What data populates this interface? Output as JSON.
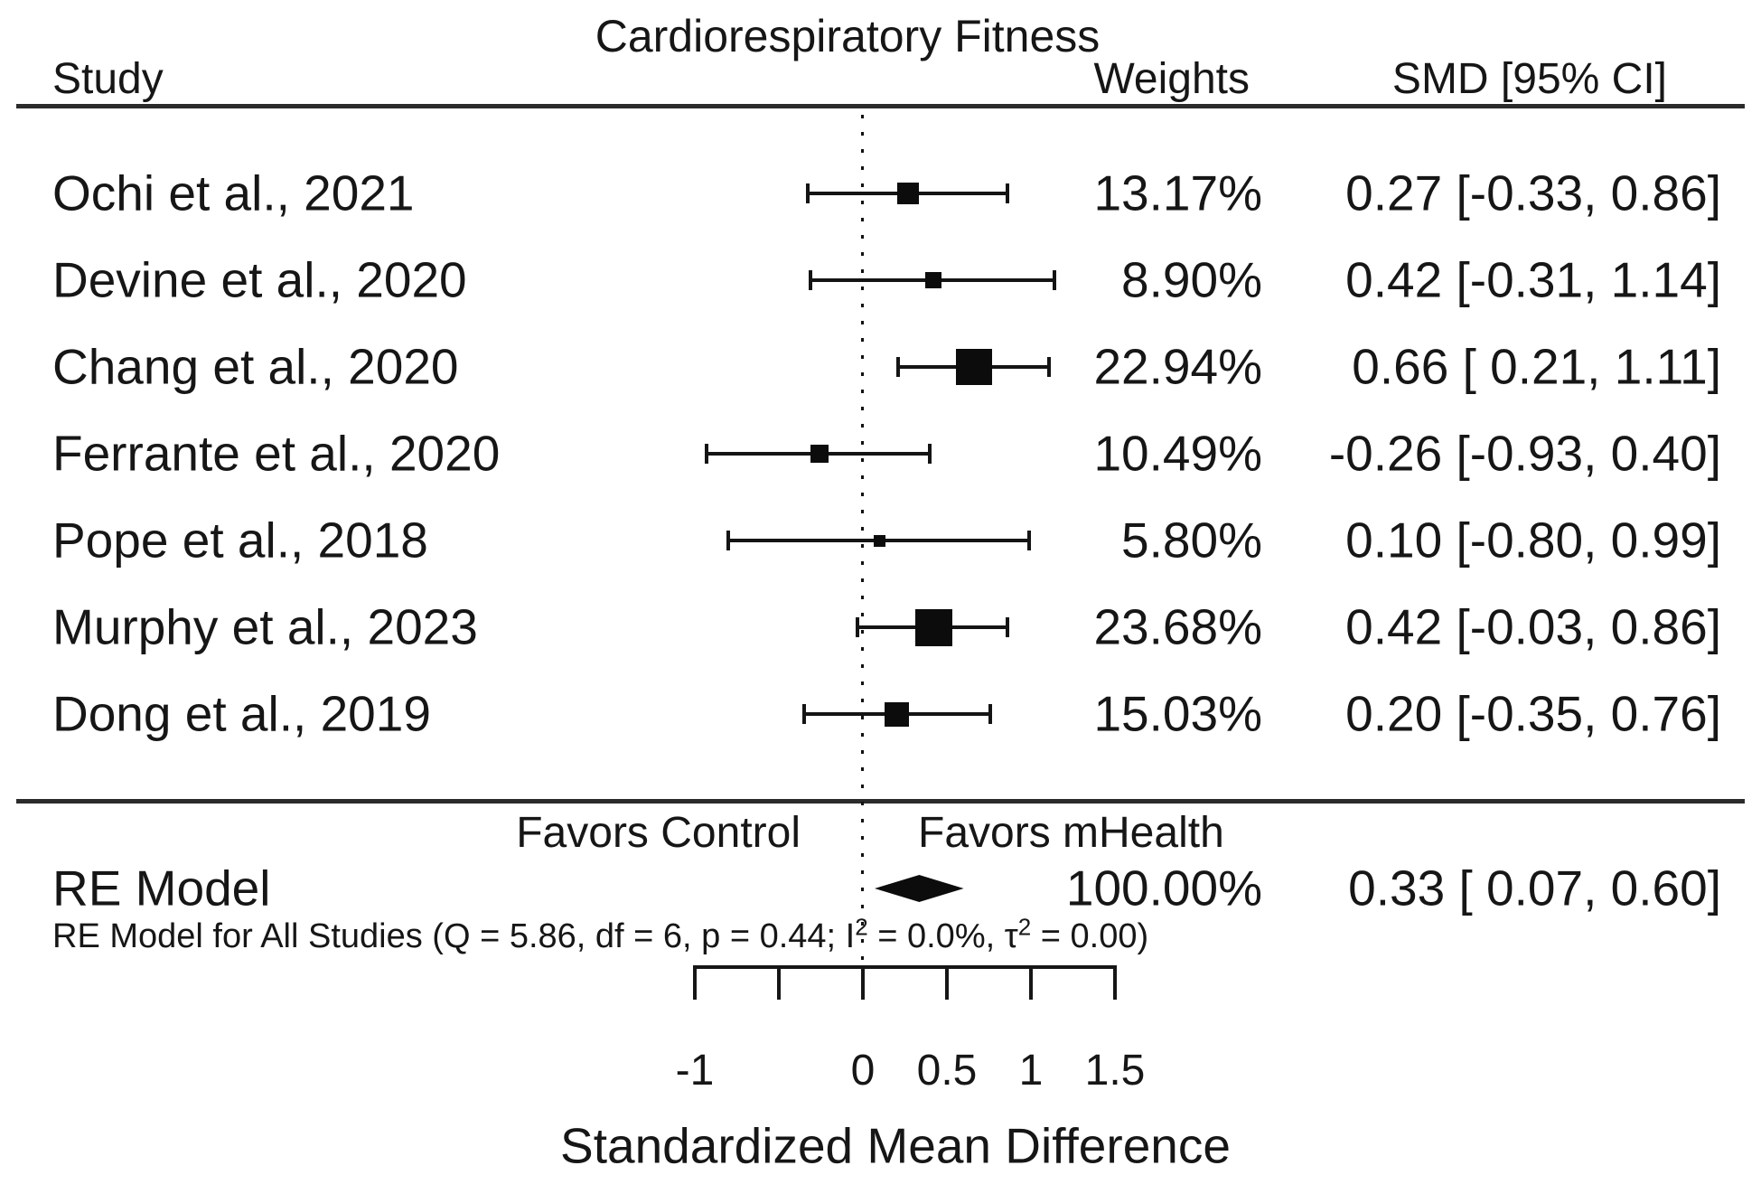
{
  "header": {
    "study": "Study",
    "weights": "Weights",
    "smd": "SMD [95% CI]"
  },
  "chart_data": {
    "type": "forest",
    "title": "Cardiorespiratory Fitness",
    "xlabel": "Standardized Mean Difference",
    "xlim": [
      -1,
      1.5
    ],
    "x_ticks": [
      -1,
      -0.5,
      0,
      0.5,
      1,
      1.5
    ],
    "x_tick_labels": [
      "-1",
      "",
      "0",
      "0.5",
      "1",
      "1.5"
    ],
    "zero_reference_line": 0,
    "favors_left": "Favors Control",
    "favors_right": "Favors mHealth",
    "studies": [
      {
        "label": "Ochi et al., 2021",
        "weight_pct": 13.17,
        "weight_label": "13.17%",
        "smd": 0.27,
        "ci_low": -0.33,
        "ci_high": 0.86,
        "smd_label": "0.27 [-0.33, 0.86]"
      },
      {
        "label": "Devine et al., 2020",
        "weight_pct": 8.9,
        "weight_label": "8.90%",
        "smd": 0.42,
        "ci_low": -0.31,
        "ci_high": 1.14,
        "smd_label": "0.42 [-0.31, 1.14]"
      },
      {
        "label": "Chang et al., 2020",
        "weight_pct": 22.94,
        "weight_label": "22.94%",
        "smd": 0.66,
        "ci_low": 0.21,
        "ci_high": 1.11,
        "smd_label": "0.66 [ 0.21, 1.11]"
      },
      {
        "label": "Ferrante et al., 2020",
        "weight_pct": 10.49,
        "weight_label": "10.49%",
        "smd": -0.26,
        "ci_low": -0.93,
        "ci_high": 0.4,
        "smd_label": "-0.26 [-0.93, 0.40]"
      },
      {
        "label": "Pope et al., 2018",
        "weight_pct": 5.8,
        "weight_label": "5.80%",
        "smd": 0.1,
        "ci_low": -0.8,
        "ci_high": 0.99,
        "smd_label": "0.10 [-0.80, 0.99]"
      },
      {
        "label": "Murphy et al., 2023",
        "weight_pct": 23.68,
        "weight_label": "23.68%",
        "smd": 0.42,
        "ci_low": -0.03,
        "ci_high": 0.86,
        "smd_label": "0.42 [-0.03, 0.86]"
      },
      {
        "label": "Dong et al., 2019",
        "weight_pct": 15.03,
        "weight_label": "15.03%",
        "smd": 0.2,
        "ci_low": -0.35,
        "ci_high": 0.76,
        "smd_label": "0.20 [-0.35, 0.76]"
      }
    ],
    "summary": {
      "label": "RE Model",
      "weight_pct": 100.0,
      "weight_label": "100.00%",
      "smd": 0.33,
      "ci_low": 0.07,
      "ci_high": 0.6,
      "smd_label": "0.33 [ 0.07, 0.60]"
    },
    "heterogeneity": {
      "prefix": "RE Model for All Studies (Q = 5.86, df = 6, p = 0.44; I",
      "sup1": "2",
      "mid": " = 0.0%, τ",
      "sup2": "2",
      "suffix": " = 0.00)"
    }
  }
}
